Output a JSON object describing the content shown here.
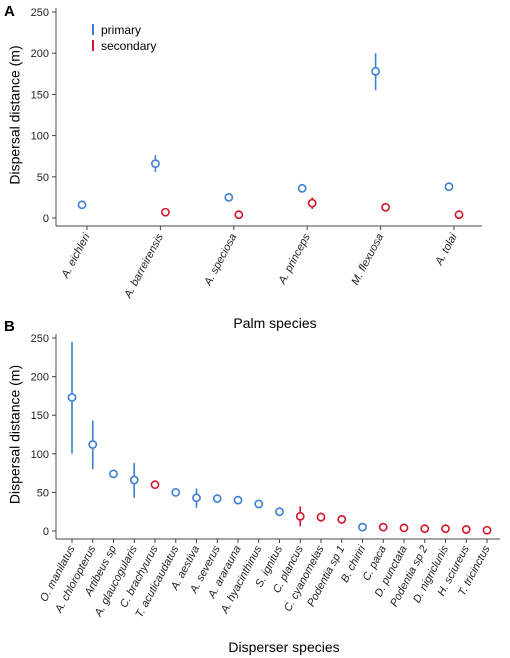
{
  "chart_data": [
    {
      "panel": "A",
      "type": "scatter",
      "xlabel": "Palm species",
      "ylabel": "Dispersal distance (m)",
      "ylim": [
        0,
        250
      ],
      "yticks": [
        0,
        50,
        100,
        150,
        200,
        250
      ],
      "grid": false,
      "legend": {
        "placement": "top-left",
        "entries": [
          "primary",
          "secondary"
        ]
      },
      "colors": {
        "primary": "#3a7fd5",
        "secondary": "#d4152a"
      },
      "categories": [
        "A. eichleri",
        "A. barreirensis",
        "A. speciosa",
        "A. princeps",
        "M. flexuosa",
        "A. tolai"
      ],
      "series": [
        {
          "name": "primary",
          "points": [
            {
              "category": "A. eichleri",
              "mean": 16,
              "low": 13,
              "high": 19
            },
            {
              "category": "A. barreirensis",
              "mean": 66,
              "low": 56,
              "high": 76
            },
            {
              "category": "A. speciosa",
              "mean": 25,
              "low": 22,
              "high": 28
            },
            {
              "category": "A. princeps",
              "mean": 36,
              "low": 32,
              "high": 40
            },
            {
              "category": "M. flexuosa",
              "mean": 178,
              "low": 155,
              "high": 200
            },
            {
              "category": "A. tolai",
              "mean": 38,
              "low": 34,
              "high": 42
            }
          ]
        },
        {
          "name": "secondary",
          "points": [
            {
              "category": "A. barreirensis",
              "mean": 7,
              "low": 5,
              "high": 9
            },
            {
              "category": "A. speciosa",
              "mean": 4,
              "low": 2,
              "high": 6
            },
            {
              "category": "A. princeps",
              "mean": 18,
              "low": 11,
              "high": 25
            },
            {
              "category": "M. flexuosa",
              "mean": 13,
              "low": 10,
              "high": 16
            },
            {
              "category": "A. tolai",
              "mean": 4,
              "low": 2,
              "high": 6
            }
          ]
        }
      ]
    },
    {
      "panel": "B",
      "type": "scatter",
      "xlabel": "Disperser species",
      "ylabel": "Dispersal distance (m)",
      "ylim": [
        0,
        250
      ],
      "yticks": [
        0,
        50,
        100,
        150,
        200,
        250
      ],
      "grid": false,
      "colors": {
        "primary": "#3a7fd5",
        "secondary": "#d4152a"
      },
      "categories": [
        "O. manilatus",
        "A. chloropterus",
        "Artibeus sp",
        "A. glaucogularis",
        "C. brachyurus",
        "T. acuticaudatus",
        "A. aestiva",
        "A. severus",
        "A. ararauna",
        "A. hyacinthinus",
        "S. ignitus",
        "C. plancus",
        "C. cyanomelas",
        "Podentia sp 1",
        "B. chiriri",
        "C. paca",
        "D. punctata",
        "Podentia sp 2",
        "D. nigriclunis",
        "H. sciureus",
        "T. tricinctus"
      ],
      "series": [
        {
          "name": "primary",
          "points": [
            {
              "category": "O. manilatus",
              "mean": 173,
              "low": 100,
              "high": 245
            },
            {
              "category": "A. chloropterus",
              "mean": 112,
              "low": 80,
              "high": 143
            },
            {
              "category": "Artibeus sp",
              "mean": 74,
              "low": 71,
              "high": 77
            },
            {
              "category": "A. glaucogularis",
              "mean": 66,
              "low": 43,
              "high": 88
            },
            {
              "category": "T. acuticaudatus",
              "mean": 50,
              "low": 47,
              "high": 53
            },
            {
              "category": "A. aestiva",
              "mean": 43,
              "low": 30,
              "high": 55
            },
            {
              "category": "A. severus",
              "mean": 42,
              "low": 39,
              "high": 45
            },
            {
              "category": "A. ararauna",
              "mean": 40,
              "low": 37,
              "high": 43
            },
            {
              "category": "A. hyacinthinus",
              "mean": 35,
              "low": 32,
              "high": 38
            },
            {
              "category": "S. ignitus",
              "mean": 25,
              "low": 22,
              "high": 28
            },
            {
              "category": "B. chiriri",
              "mean": 5,
              "low": 3,
              "high": 7
            }
          ]
        },
        {
          "name": "secondary",
          "points": [
            {
              "category": "C. brachyurus",
              "mean": 60,
              "low": 57,
              "high": 63
            },
            {
              "category": "C. plancus",
              "mean": 19,
              "low": 6,
              "high": 32
            },
            {
              "category": "C. cyanomelas",
              "mean": 18,
              "low": 12,
              "high": 24
            },
            {
              "category": "Podentia sp 1",
              "mean": 15,
              "low": 12,
              "high": 18
            },
            {
              "category": "C. paca",
              "mean": 5,
              "low": 3,
              "high": 7
            },
            {
              "category": "D. punctata",
              "mean": 4,
              "low": 2,
              "high": 6
            },
            {
              "category": "Podentia sp 2",
              "mean": 3,
              "low": 1,
              "high": 5
            },
            {
              "category": "D. nigriclunis",
              "mean": 3,
              "low": 1,
              "high": 5
            },
            {
              "category": "H. sciureus",
              "mean": 2,
              "low": 0,
              "high": 4
            },
            {
              "category": "T. tricinctus",
              "mean": 1,
              "low": 0,
              "high": 3
            }
          ]
        }
      ]
    }
  ]
}
